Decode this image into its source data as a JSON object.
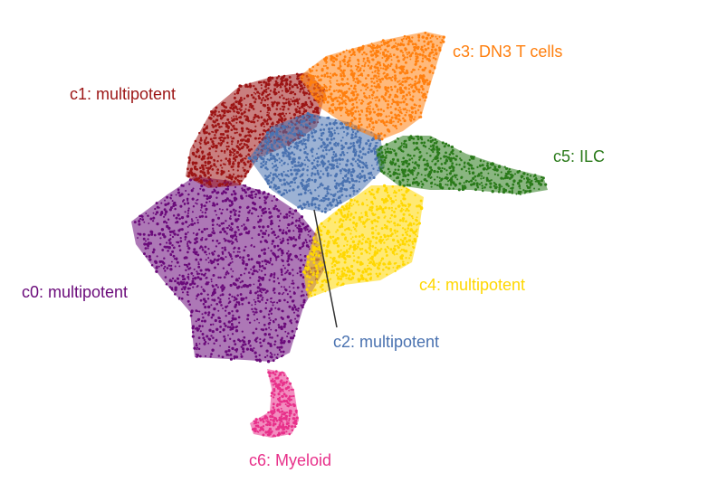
{
  "chart_data": {
    "type": "scatter",
    "title": "",
    "xlabel": "",
    "ylabel": "",
    "axes_visible": false,
    "grid": false,
    "legend": "none (clusters labeled directly on plot)",
    "clusters": [
      {
        "id": "c0",
        "label": "c0: multipotent",
        "color": "#6a0a7a",
        "approx_center": [
          235,
          300
        ]
      },
      {
        "id": "c1",
        "label": "c1: multipotent",
        "color": "#9c1515",
        "approx_center": [
          270,
          145
        ]
      },
      {
        "id": "c2",
        "label": "c2: multipotent",
        "color": "#4a72b0",
        "approx_center": [
          345,
          185
        ]
      },
      {
        "id": "c3",
        "label": "c3: DN3 T cells",
        "color": "#ff7f0e",
        "approx_center": [
          420,
          100
        ]
      },
      {
        "id": "c4",
        "label": "c4: multipotent",
        "color": "#ffd700",
        "approx_center": [
          420,
          265
        ]
      },
      {
        "id": "c5",
        "label": "c5: ILC",
        "color": "#2a7a1a",
        "approx_center": [
          520,
          185
        ]
      },
      {
        "id": "c6",
        "label": "c6: Myeloid",
        "color": "#e8308a",
        "approx_center": [
          308,
          460
        ]
      }
    ]
  }
}
